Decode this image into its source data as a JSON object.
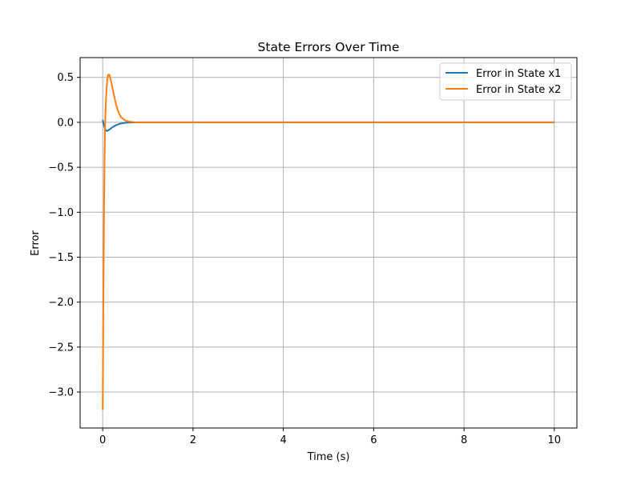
{
  "chart_data": {
    "type": "line",
    "title": "State Errors Over Time",
    "xlabel": "Time (s)",
    "ylabel": "Error",
    "xlim": [
      -0.5,
      10.5
    ],
    "ylim": [
      -3.4,
      0.72
    ],
    "xticks": [
      0,
      2,
      4,
      6,
      8,
      10
    ],
    "xtick_labels": [
      "0",
      "2",
      "4",
      "6",
      "8",
      "10"
    ],
    "yticks": [
      0.5,
      0.0,
      -0.5,
      -1.0,
      -1.5,
      -2.0,
      -2.5,
      -3.0
    ],
    "ytick_labels": [
      "0.5",
      "0.0",
      "−0.5",
      "−1.0",
      "−1.5",
      "−2.0",
      "−2.5",
      "−3.0"
    ],
    "grid": true,
    "legend_position": "top-right",
    "series": [
      {
        "name": "Error in State x1",
        "color": "#1f77b4",
        "x": [
          0,
          0.02,
          0.05,
          0.08,
          0.1,
          0.15,
          0.2,
          0.3,
          0.4,
          0.5,
          0.6,
          0.7,
          0.8,
          1.0,
          2,
          4,
          6,
          8,
          10
        ],
        "y": [
          0.03,
          -0.02,
          -0.07,
          -0.095,
          -0.095,
          -0.08,
          -0.06,
          -0.03,
          -0.013,
          -0.005,
          -0.002,
          -0.001,
          0.0,
          0.0,
          0.0,
          0.0,
          0.0,
          0.0,
          0.0
        ]
      },
      {
        "name": "Error in State x2",
        "color": "#ff7f0e",
        "x": [
          0,
          0.01,
          0.02,
          0.03,
          0.04,
          0.05,
          0.06,
          0.08,
          0.1,
          0.12,
          0.15,
          0.18,
          0.2,
          0.25,
          0.3,
          0.35,
          0.4,
          0.5,
          0.6,
          0.7,
          0.8,
          1.0,
          2,
          4,
          6,
          8,
          10
        ],
        "y": [
          -3.2,
          -2.4,
          -1.6,
          -0.95,
          -0.45,
          -0.1,
          0.1,
          0.32,
          0.47,
          0.53,
          0.53,
          0.47,
          0.42,
          0.3,
          0.19,
          0.11,
          0.06,
          0.02,
          0.007,
          0.002,
          0.0,
          0.0,
          0.0,
          0.0,
          0.0,
          0.0,
          0.0
        ]
      }
    ]
  }
}
